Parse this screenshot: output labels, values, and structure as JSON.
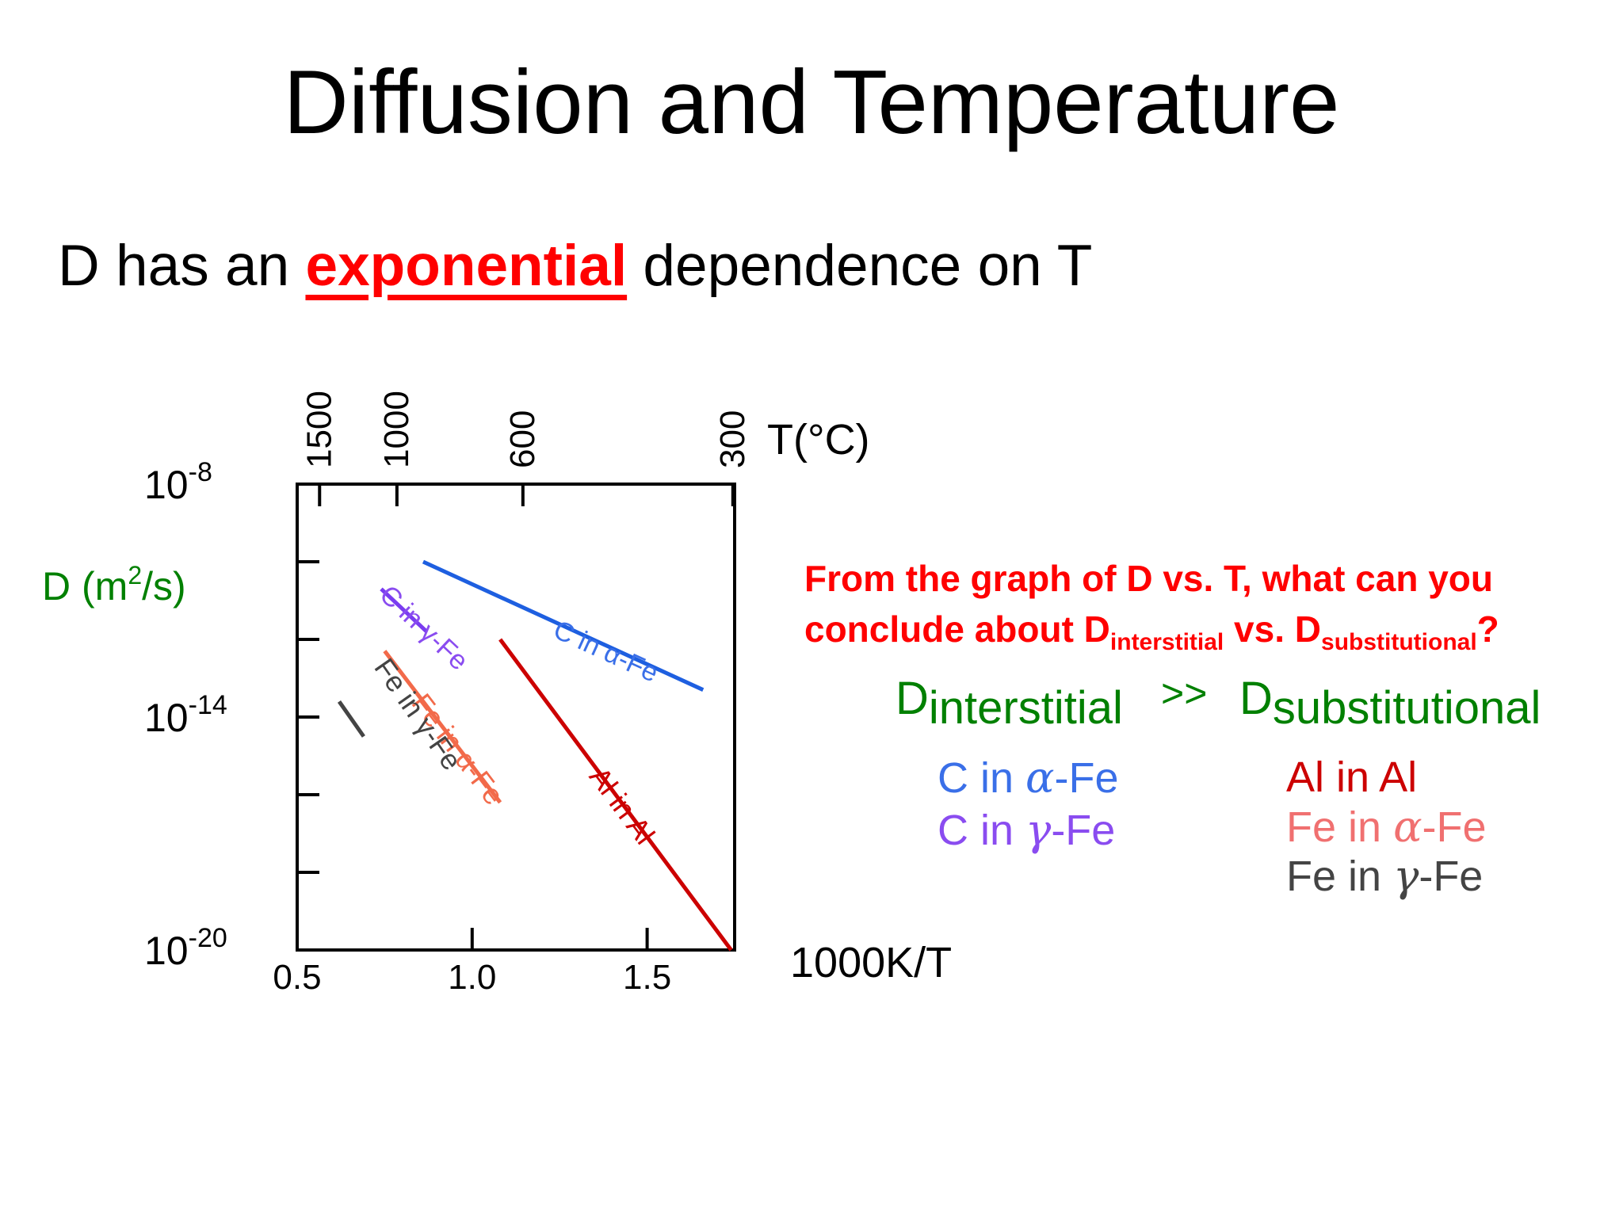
{
  "slide": {
    "title": "Diffusion and Temperature",
    "subtitle_prefix": "D has an ",
    "subtitle_emphasis": "exponential",
    "subtitle_suffix": " dependence on T"
  },
  "chart_data": {
    "type": "line",
    "x_axis": {
      "label": "1000K/T",
      "range": [
        0.5,
        1.75
      ],
      "ticks": [
        0.5,
        1.0,
        1.5
      ]
    },
    "top_axis": {
      "label": "T(°C)",
      "ticks": [
        "1500",
        "1000",
        "600",
        "300"
      ],
      "tick_x": [
        0.564,
        0.785,
        1.145,
        1.745
      ]
    },
    "y_axis": {
      "label_text": "D (m",
      "label_sup": "2",
      "label_end": "/s)",
      "scale": "log10",
      "range": [
        -20,
        -8
      ],
      "ticks": [
        -20,
        -14,
        -8
      ],
      "tick_labels": [
        "10-20",
        "10-14",
        "10-8"
      ],
      "minor_ticks": [
        -18,
        -16,
        -12,
        -10
      ]
    },
    "series": [
      {
        "name": "C in α-Fe",
        "color": "#1e5fe0",
        "label_color": "#3a6fe8",
        "x": [
          0.86,
          1.66
        ],
        "y": [
          -10.0,
          -13.3
        ]
      },
      {
        "name": "C in γ-Fe",
        "color": "#7a3cf0",
        "label_color": "#8a4cf0",
        "x": [
          0.74,
          0.87
        ],
        "y": [
          -10.7,
          -11.8
        ]
      },
      {
        "name": "Fe in α-Fe",
        "color": "#f26a4a",
        "label_color": "#f26a4a",
        "x": [
          0.75,
          1.08
        ],
        "y": [
          -12.3,
          -16.2
        ]
      },
      {
        "name": "Fe in γ-Fe",
        "color": "#444444",
        "label_color": "#444444",
        "x": [
          0.62,
          0.69
        ],
        "y": [
          -13.6,
          -14.5
        ]
      },
      {
        "name": "Al in Al",
        "color": "#cc0000",
        "label_color": "#cc0000",
        "x": [
          1.08,
          1.74
        ],
        "y": [
          -12.0,
          -20.0
        ]
      }
    ]
  },
  "question": {
    "line1": "From the graph of D vs. T, what can you",
    "line2_prefix": "conclude about D",
    "line2_sub1": "interstitial",
    "line2_mid": " vs. D",
    "line2_sub2": "substitutional",
    "line2_end": "?"
  },
  "comparison": {
    "left_d": "D",
    "left_sub": "interstitial",
    "operator": ">>",
    "right_d": "D",
    "right_sub": "substitutional"
  },
  "interstitial_examples": [
    {
      "pre": "C in ",
      "greek": "α",
      "post": "-Fe",
      "color": "#3a6fe8"
    },
    {
      "pre": "C in ",
      "greek": "γ",
      "post": "-Fe",
      "color": "#8a4cf0"
    }
  ],
  "substitutional_examples": [
    {
      "pre": "Al in Al",
      "greek": "",
      "post": "",
      "color": "#cc0000"
    },
    {
      "pre": "Fe in ",
      "greek": "α",
      "post": "-Fe",
      "color": "#f07070"
    },
    {
      "pre": "Fe in ",
      "greek": "γ",
      "post": "-Fe",
      "color": "#444444"
    }
  ],
  "colors": {
    "title": "#000000",
    "emphasis": "#ff0000",
    "question": "#ff0000",
    "comparison": "#008000",
    "axis_label_y": "#008000"
  }
}
